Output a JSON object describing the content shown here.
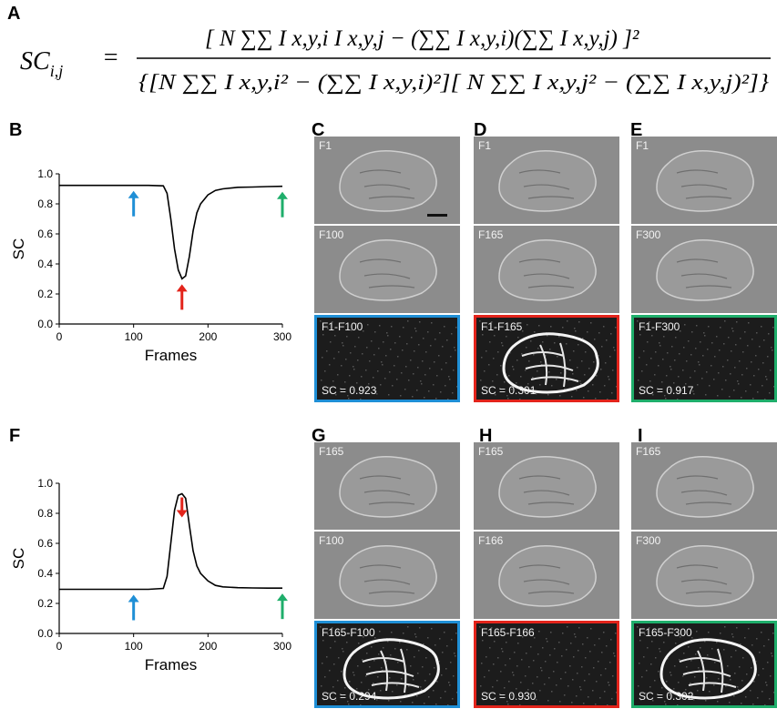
{
  "panels": {
    "A": "A",
    "B": "B",
    "C": "C",
    "D": "D",
    "E": "E",
    "F": "F",
    "G": "G",
    "H": "H",
    "I": "I"
  },
  "formula": {
    "lhs": "SC",
    "lhs_sub": "i,j",
    "equals": "=",
    "numerator": "[ N ∑∑ I x,y,i I x,y,j − (∑∑ I x,y,i)(∑∑ I x,y,j) ]²",
    "denominator": "{[N ∑∑ I x,y,i² − (∑∑ I x,y,i)²][ N ∑∑ I x,y,j² − (∑∑ I x,y,j)²]}"
  },
  "colors": {
    "blue": "#1f8fd6",
    "red": "#e3241b",
    "green": "#1fae6b"
  },
  "chart_data": [
    {
      "type": "line",
      "panel": "B",
      "xlabel": "Frames",
      "ylabel": "SC",
      "xlim": [
        0,
        300
      ],
      "ylim": [
        0,
        1.0
      ],
      "xticks": [
        "0",
        "100",
        "200",
        "300"
      ],
      "yticks": [
        "0.0",
        "0.2",
        "0.4",
        "0.6",
        "0.8",
        "1.0"
      ],
      "x": [
        0,
        20,
        40,
        60,
        80,
        100,
        120,
        140,
        145,
        150,
        155,
        160,
        165,
        170,
        175,
        180,
        185,
        190,
        200,
        210,
        220,
        240,
        260,
        280,
        300
      ],
      "y": [
        0.923,
        0.923,
        0.923,
        0.923,
        0.923,
        0.923,
        0.923,
        0.92,
        0.87,
        0.7,
        0.5,
        0.36,
        0.301,
        0.32,
        0.45,
        0.62,
        0.74,
        0.8,
        0.86,
        0.89,
        0.9,
        0.91,
        0.912,
        0.915,
        0.917
      ],
      "arrows": [
        {
          "x": 100,
          "color": "blue",
          "direction": "up"
        },
        {
          "x": 165,
          "color": "red",
          "direction": "up"
        },
        {
          "x": 300,
          "color": "green",
          "direction": "up"
        }
      ]
    },
    {
      "type": "line",
      "panel": "F",
      "xlabel": "Frames",
      "ylabel": "SC",
      "xlim": [
        0,
        300
      ],
      "ylim": [
        0,
        1.0
      ],
      "xticks": [
        "0",
        "100",
        "200",
        "300"
      ],
      "yticks": [
        "0.0",
        "0.2",
        "0.4",
        "0.6",
        "0.8",
        "1.0"
      ],
      "x": [
        0,
        20,
        40,
        60,
        80,
        100,
        120,
        140,
        145,
        150,
        155,
        160,
        165,
        170,
        175,
        180,
        185,
        190,
        200,
        210,
        220,
        240,
        260,
        280,
        300
      ],
      "y": [
        0.294,
        0.294,
        0.294,
        0.294,
        0.294,
        0.294,
        0.294,
        0.3,
        0.38,
        0.6,
        0.82,
        0.92,
        0.93,
        0.9,
        0.72,
        0.55,
        0.45,
        0.4,
        0.35,
        0.32,
        0.31,
        0.305,
        0.303,
        0.302,
        0.302
      ],
      "arrows": [
        {
          "x": 100,
          "color": "blue",
          "direction": "up"
        },
        {
          "x": 165,
          "color": "red",
          "direction": "down"
        },
        {
          "x": 300,
          "color": "green",
          "direction": "up"
        }
      ]
    }
  ],
  "tiles": {
    "C": [
      {
        "label": "F1"
      },
      {
        "label": "F100"
      },
      {
        "label": "F1-F100",
        "sc": "SC = 0.923",
        "border": "blue",
        "strong": false
      }
    ],
    "D": [
      {
        "label": "F1"
      },
      {
        "label": "F165"
      },
      {
        "label": "F1-F165",
        "sc": "SC = 0.301",
        "border": "red",
        "strong": true
      }
    ],
    "E": [
      {
        "label": "F1"
      },
      {
        "label": "F300"
      },
      {
        "label": "F1-F300",
        "sc": "SC = 0.917",
        "border": "green",
        "strong": false
      }
    ],
    "G": [
      {
        "label": "F165"
      },
      {
        "label": "F100"
      },
      {
        "label": "F165-F100",
        "sc": "SC = 0.294",
        "border": "blue",
        "strong": true
      }
    ],
    "H": [
      {
        "label": "F165"
      },
      {
        "label": "F166"
      },
      {
        "label": "F165-F166",
        "sc": "SC = 0.930",
        "border": "red",
        "strong": false
      }
    ],
    "I": [
      {
        "label": "F165"
      },
      {
        "label": "F300"
      },
      {
        "label": "F165-F300",
        "sc": "SC = 0.302",
        "border": "green",
        "strong": true
      }
    ]
  }
}
